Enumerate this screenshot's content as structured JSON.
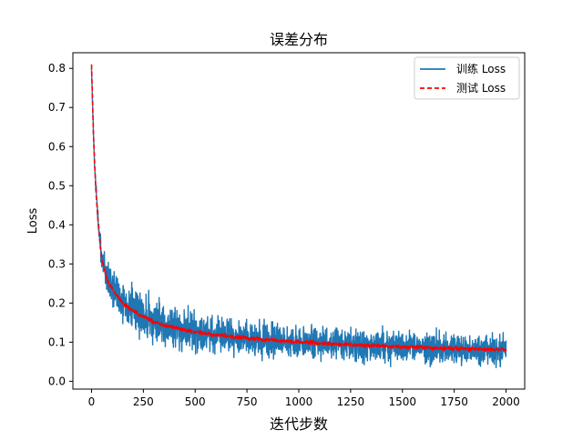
{
  "chart_data": {
    "type": "line",
    "title": "误差分布",
    "xlabel": "迭代步数",
    "ylabel": "Loss",
    "xlim": [
      -90,
      2090
    ],
    "ylim": [
      -0.02,
      0.84
    ],
    "xticks": [
      0,
      250,
      500,
      750,
      1000,
      1250,
      1500,
      1750,
      2000
    ],
    "yticks": [
      0.0,
      0.1,
      0.2,
      0.3,
      0.4,
      0.5,
      0.6,
      0.7,
      0.8
    ],
    "xtick_labels": [
      "0",
      "250",
      "500",
      "750",
      "1000",
      "1250",
      "1500",
      "1750",
      "2000"
    ],
    "ytick_labels": [
      "0.0",
      "0.1",
      "0.2",
      "0.3",
      "0.4",
      "0.5",
      "0.6",
      "0.7",
      "0.8"
    ],
    "grid": false,
    "legend_position": "top-right",
    "series": [
      {
        "name": "训练 Loss",
        "color": "#1f77b4",
        "style": "solid",
        "x": [
          0,
          10,
          20,
          30,
          40,
          50,
          75,
          100,
          150,
          200,
          250,
          300,
          400,
          500,
          600,
          750,
          900,
          1000,
          1100,
          1250,
          1400,
          1500,
          1600,
          1750,
          1900,
          2000
        ],
        "y": [
          0.8,
          0.62,
          0.5,
          0.42,
          0.36,
          0.31,
          0.27,
          0.24,
          0.205,
          0.185,
          0.17,
          0.155,
          0.14,
          0.128,
          0.12,
          0.11,
          0.105,
          0.1,
          0.097,
          0.093,
          0.09,
          0.088,
          0.086,
          0.083,
          0.081,
          0.08
        ],
        "noise_amplitude": [
          0.0,
          0.01,
          0.015,
          0.02,
          0.025,
          0.03,
          0.035,
          0.04,
          0.045,
          0.045,
          0.045,
          0.045,
          0.04,
          0.04,
          0.038,
          0.036,
          0.035,
          0.035,
          0.035,
          0.033,
          0.033,
          0.033,
          0.032,
          0.032,
          0.03,
          0.03
        ]
      },
      {
        "name": "测试 Loss",
        "color": "#ff0000",
        "style": "dashed",
        "x": [
          0,
          10,
          20,
          30,
          40,
          50,
          75,
          100,
          150,
          200,
          250,
          300,
          400,
          500,
          600,
          750,
          900,
          1000,
          1100,
          1250,
          1400,
          1500,
          1600,
          1750,
          1900,
          2000
        ],
        "y": [
          0.81,
          0.62,
          0.5,
          0.42,
          0.36,
          0.31,
          0.26,
          0.235,
          0.2,
          0.18,
          0.165,
          0.152,
          0.138,
          0.126,
          0.118,
          0.11,
          0.104,
          0.1,
          0.097,
          0.093,
          0.09,
          0.088,
          0.086,
          0.084,
          0.082,
          0.081
        ],
        "noise_amplitude": [
          0.0,
          0.004,
          0.004,
          0.004,
          0.004,
          0.004,
          0.004,
          0.004,
          0.004,
          0.004,
          0.004,
          0.004,
          0.004,
          0.004,
          0.004,
          0.004,
          0.004,
          0.004,
          0.004,
          0.004,
          0.004,
          0.004,
          0.004,
          0.004,
          0.004,
          0.004
        ]
      }
    ]
  }
}
